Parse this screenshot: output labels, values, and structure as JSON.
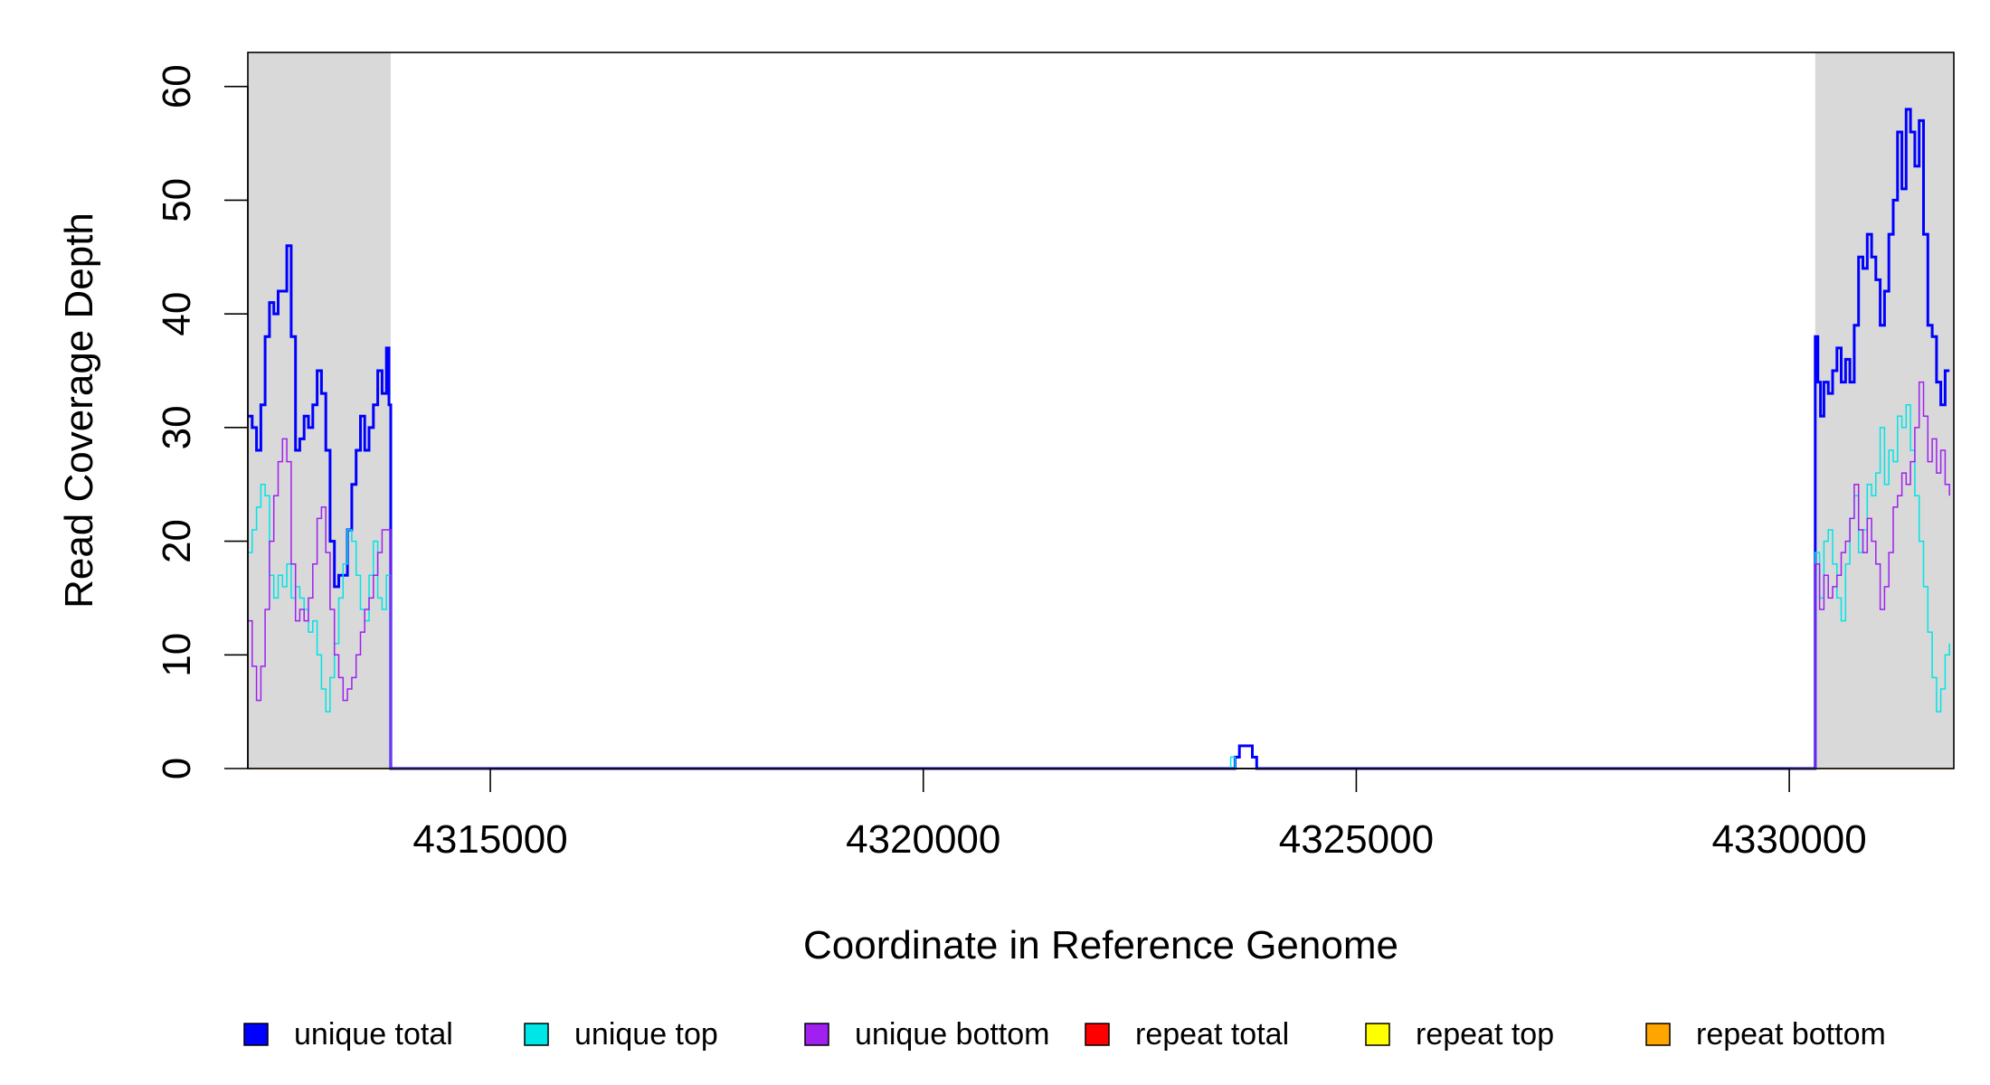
{
  "chart_data": {
    "type": "line",
    "title": "",
    "xlabel": "Coordinate in Reference Genome",
    "ylabel": "Read Coverage Depth",
    "xlim": [
      4312200,
      4331900
    ],
    "ylim": [
      0,
      63
    ],
    "x_ticks": [
      4315000,
      4320000,
      4325000,
      4330000
    ],
    "x_tick_labels": [
      "4315000",
      "4320000",
      "4325000",
      "4330000"
    ],
    "y_ticks": [
      0,
      10,
      20,
      30,
      40,
      50,
      60
    ],
    "y_tick_labels": [
      "0",
      "10",
      "20",
      "30",
      "40",
      "50",
      "60"
    ],
    "grid": false,
    "legend_position": "bottom",
    "shaded_regions": [
      {
        "x0": 4312200,
        "x1": 4313850,
        "color": "#d9d9d9"
      },
      {
        "x0": 4330300,
        "x1": 4331900,
        "color": "#d9d9d9"
      }
    ],
    "series": [
      {
        "name": "unique total",
        "color": "#0000ff",
        "width": 3,
        "points": [
          [
            4312200,
            31
          ],
          [
            4312250,
            30
          ],
          [
            4312300,
            28
          ],
          [
            4312350,
            32
          ],
          [
            4312400,
            38
          ],
          [
            4312450,
            41
          ],
          [
            4312500,
            40
          ],
          [
            4312550,
            42
          ],
          [
            4312600,
            42
          ],
          [
            4312650,
            46
          ],
          [
            4312700,
            38
          ],
          [
            4312750,
            28
          ],
          [
            4312800,
            29
          ],
          [
            4312850,
            31
          ],
          [
            4312900,
            30
          ],
          [
            4312950,
            32
          ],
          [
            4313000,
            35
          ],
          [
            4313050,
            33
          ],
          [
            4313100,
            28
          ],
          [
            4313150,
            20
          ],
          [
            4313200,
            16
          ],
          [
            4313250,
            17
          ],
          [
            4313300,
            17
          ],
          [
            4313350,
            21
          ],
          [
            4313400,
            25
          ],
          [
            4313450,
            28
          ],
          [
            4313500,
            31
          ],
          [
            4313550,
            28
          ],
          [
            4313600,
            30
          ],
          [
            4313650,
            32
          ],
          [
            4313700,
            35
          ],
          [
            4313750,
            33
          ],
          [
            4313800,
            37
          ],
          [
            4313830,
            32
          ],
          [
            4313850,
            0
          ],
          [
            4323550,
            0
          ],
          [
            4323600,
            1
          ],
          [
            4323650,
            2
          ],
          [
            4323750,
            2
          ],
          [
            4323800,
            1
          ],
          [
            4323850,
            0
          ],
          [
            4330300,
            38
          ],
          [
            4330330,
            34
          ],
          [
            4330360,
            31
          ],
          [
            4330400,
            34
          ],
          [
            4330450,
            33
          ],
          [
            4330500,
            35
          ],
          [
            4330550,
            37
          ],
          [
            4330600,
            34
          ],
          [
            4330650,
            36
          ],
          [
            4330700,
            34
          ],
          [
            4330750,
            39
          ],
          [
            4330800,
            45
          ],
          [
            4330850,
            44
          ],
          [
            4330900,
            47
          ],
          [
            4330950,
            45
          ],
          [
            4331000,
            43
          ],
          [
            4331050,
            39
          ],
          [
            4331100,
            42
          ],
          [
            4331150,
            47
          ],
          [
            4331200,
            50
          ],
          [
            4331250,
            56
          ],
          [
            4331300,
            51
          ],
          [
            4331350,
            58
          ],
          [
            4331400,
            56
          ],
          [
            4331450,
            53
          ],
          [
            4331500,
            57
          ],
          [
            4331550,
            47
          ],
          [
            4331600,
            39
          ],
          [
            4331650,
            38
          ],
          [
            4331700,
            34
          ],
          [
            4331750,
            32
          ],
          [
            4331800,
            35
          ],
          [
            4331850,
            35
          ]
        ]
      },
      {
        "name": "unique top",
        "color": "#00e5e5",
        "width": 1.5,
        "points": [
          [
            4312200,
            19
          ],
          [
            4312250,
            21
          ],
          [
            4312300,
            23
          ],
          [
            4312350,
            25
          ],
          [
            4312400,
            24
          ],
          [
            4312450,
            17
          ],
          [
            4312500,
            15
          ],
          [
            4312550,
            17
          ],
          [
            4312600,
            16
          ],
          [
            4312650,
            18
          ],
          [
            4312700,
            15
          ],
          [
            4312750,
            16
          ],
          [
            4312800,
            15
          ],
          [
            4312850,
            14
          ],
          [
            4312900,
            12
          ],
          [
            4312950,
            13
          ],
          [
            4313000,
            10
          ],
          [
            4313050,
            7
          ],
          [
            4313100,
            5
          ],
          [
            4313150,
            8
          ],
          [
            4313200,
            11
          ],
          [
            4313250,
            15
          ],
          [
            4313300,
            18
          ],
          [
            4313350,
            21
          ],
          [
            4313400,
            20
          ],
          [
            4313450,
            17
          ],
          [
            4313500,
            14
          ],
          [
            4313550,
            13
          ],
          [
            4313600,
            17
          ],
          [
            4313650,
            20
          ],
          [
            4313700,
            15
          ],
          [
            4313750,
            14
          ],
          [
            4313800,
            17
          ],
          [
            4313850,
            0
          ],
          [
            4323500,
            0
          ],
          [
            4323550,
            1
          ],
          [
            4323600,
            0
          ],
          [
            4330300,
            19
          ],
          [
            4330350,
            15
          ],
          [
            4330400,
            20
          ],
          [
            4330450,
            21
          ],
          [
            4330500,
            18
          ],
          [
            4330550,
            15
          ],
          [
            4330600,
            13
          ],
          [
            4330650,
            18
          ],
          [
            4330700,
            22
          ],
          [
            4330750,
            24
          ],
          [
            4330800,
            19
          ],
          [
            4330850,
            21
          ],
          [
            4330900,
            25
          ],
          [
            4330950,
            24
          ],
          [
            4331000,
            26
          ],
          [
            4331050,
            30
          ],
          [
            4331100,
            25
          ],
          [
            4331150,
            28
          ],
          [
            4331200,
            27
          ],
          [
            4331250,
            31
          ],
          [
            4331300,
            30
          ],
          [
            4331350,
            32
          ],
          [
            4331400,
            28
          ],
          [
            4331450,
            24
          ],
          [
            4331500,
            20
          ],
          [
            4331550,
            16
          ],
          [
            4331600,
            12
          ],
          [
            4331650,
            8
          ],
          [
            4331700,
            5
          ],
          [
            4331750,
            7
          ],
          [
            4331800,
            10
          ],
          [
            4331850,
            11
          ]
        ]
      },
      {
        "name": "unique bottom",
        "color": "#a020f0",
        "width": 1.5,
        "points": [
          [
            4312200,
            13
          ],
          [
            4312250,
            9
          ],
          [
            4312300,
            6
          ],
          [
            4312350,
            9
          ],
          [
            4312400,
            14
          ],
          [
            4312450,
            20
          ],
          [
            4312500,
            24
          ],
          [
            4312550,
            27
          ],
          [
            4312600,
            29
          ],
          [
            4312650,
            27
          ],
          [
            4312700,
            18
          ],
          [
            4312750,
            13
          ],
          [
            4312800,
            14
          ],
          [
            4312850,
            13
          ],
          [
            4312900,
            15
          ],
          [
            4312950,
            18
          ],
          [
            4313000,
            22
          ],
          [
            4313050,
            23
          ],
          [
            4313100,
            19
          ],
          [
            4313150,
            14
          ],
          [
            4313200,
            10
          ],
          [
            4313250,
            8
          ],
          [
            4313300,
            6
          ],
          [
            4313350,
            7
          ],
          [
            4313400,
            8
          ],
          [
            4313450,
            10
          ],
          [
            4313500,
            12
          ],
          [
            4313550,
            14
          ],
          [
            4313600,
            15
          ],
          [
            4313650,
            17
          ],
          [
            4313700,
            19
          ],
          [
            4313750,
            21
          ],
          [
            4313800,
            21
          ],
          [
            4313850,
            0
          ],
          [
            4323500,
            0
          ],
          [
            4323550,
            0
          ],
          [
            4323600,
            0
          ],
          [
            4330300,
            18
          ],
          [
            4330350,
            14
          ],
          [
            4330400,
            17
          ],
          [
            4330450,
            15
          ],
          [
            4330500,
            16
          ],
          [
            4330550,
            17
          ],
          [
            4330600,
            19
          ],
          [
            4330650,
            20
          ],
          [
            4330700,
            22
          ],
          [
            4330750,
            25
          ],
          [
            4330800,
            21
          ],
          [
            4330850,
            19
          ],
          [
            4330900,
            22
          ],
          [
            4330950,
            20
          ],
          [
            4331000,
            18
          ],
          [
            4331050,
            14
          ],
          [
            4331100,
            16
          ],
          [
            4331150,
            19
          ],
          [
            4331200,
            23
          ],
          [
            4331250,
            24
          ],
          [
            4331300,
            26
          ],
          [
            4331350,
            25
          ],
          [
            4331400,
            27
          ],
          [
            4331450,
            30
          ],
          [
            4331500,
            34
          ],
          [
            4331550,
            31
          ],
          [
            4331600,
            27
          ],
          [
            4331650,
            29
          ],
          [
            4331700,
            26
          ],
          [
            4331750,
            28
          ],
          [
            4331800,
            25
          ],
          [
            4331850,
            24
          ]
        ]
      },
      {
        "name": "repeat total",
        "color": "#ff0000",
        "width": 1.5,
        "points": []
      },
      {
        "name": "repeat top",
        "color": "#ffff00",
        "width": 1.5,
        "points": []
      },
      {
        "name": "repeat bottom",
        "color": "#ffa500",
        "width": 1.5,
        "points": [
          [
            4312200,
            0
          ],
          [
            4331900,
            0
          ]
        ]
      }
    ]
  }
}
